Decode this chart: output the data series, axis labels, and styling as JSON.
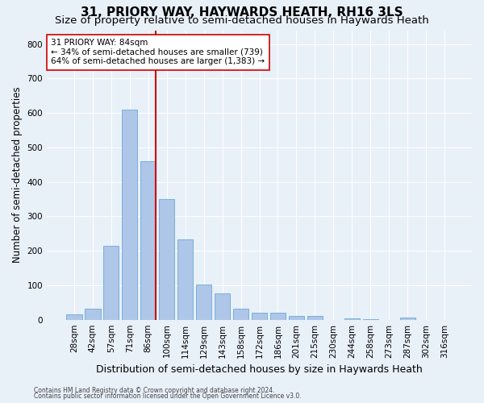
{
  "title": "31, PRIORY WAY, HAYWARDS HEATH, RH16 3LS",
  "subtitle": "Size of property relative to semi-detached houses in Haywards Heath",
  "xlabel": "Distribution of semi-detached houses by size in Haywards Heath",
  "ylabel": "Number of semi-detached properties",
  "footer1": "Contains HM Land Registry data © Crown copyright and database right 2024.",
  "footer2": "Contains public sector information licensed under the Open Government Licence v3.0.",
  "categories": [
    "28sqm",
    "42sqm",
    "57sqm",
    "71sqm",
    "86sqm",
    "100sqm",
    "114sqm",
    "129sqm",
    "143sqm",
    "158sqm",
    "172sqm",
    "186sqm",
    "201sqm",
    "215sqm",
    "230sqm",
    "244sqm",
    "258sqm",
    "273sqm",
    "287sqm",
    "302sqm",
    "316sqm"
  ],
  "values": [
    15,
    33,
    215,
    610,
    460,
    350,
    232,
    103,
    77,
    31,
    20,
    21,
    12,
    10,
    0,
    5,
    2,
    0,
    7,
    0,
    0
  ],
  "bar_color": "#aec6e8",
  "bar_edge_color": "#5a9fd4",
  "highlight_line_index": 4,
  "highlight_line_color": "#cc0000",
  "annotation_line1": "31 PRIORY WAY: 84sqm",
  "annotation_line2": "← 34% of semi-detached houses are smaller (739)",
  "annotation_line3": "64% of semi-detached houses are larger (1,383) →",
  "annotation_box_color": "#ffffff",
  "annotation_box_edge": "#cc0000",
  "ylim": [
    0,
    840
  ],
  "yticks": [
    0,
    100,
    200,
    300,
    400,
    500,
    600,
    700,
    800
  ],
  "bg_color": "#e8f0f8",
  "plot_bg_color": "#e8f0f8",
  "grid_color": "#ffffff",
  "title_fontsize": 11,
  "subtitle_fontsize": 9.5,
  "ylabel_fontsize": 8.5,
  "xlabel_fontsize": 9,
  "tick_fontsize": 7.5,
  "annotation_fontsize": 7.5,
  "footer_fontsize": 5.5
}
